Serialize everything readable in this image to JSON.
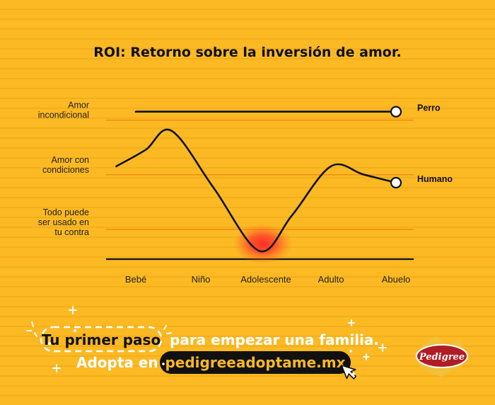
{
  "title": "ROI: Retorno sobre la inversión de amor.",
  "chart_data": {
    "type": "line",
    "title": "ROI: Retorno sobre la inversión de amor.",
    "x_categories": [
      "Bebé",
      "Niño",
      "Adolescente",
      "Adulto",
      "Abuelo"
    ],
    "y_levels": [
      {
        "lines": [
          "Amor",
          "incondicional"
        ],
        "value": 2
      },
      {
        "lines": [
          "Amor con",
          "condiciones"
        ],
        "value": 1
      },
      {
        "lines": [
          "Todo puede",
          "ser usado en",
          "tu contra"
        ],
        "value": 0
      }
    ],
    "ylim": [
      -0.7,
      2.1
    ],
    "grid": true,
    "series": [
      {
        "name": "Perro",
        "color": "#111111",
        "points": [
          [
            0,
            2
          ],
          [
            1,
            2
          ],
          [
            2,
            2
          ],
          [
            3,
            2
          ],
          [
            4,
            2
          ]
        ]
      },
      {
        "name": "Humano",
        "color": "#111111",
        "points": [
          [
            -0.3,
            1
          ],
          [
            0.15,
            1.3
          ],
          [
            0.55,
            1.65
          ],
          [
            1.2,
            0.6
          ],
          [
            1.9,
            -0.55
          ],
          [
            2.4,
            0.1
          ],
          [
            3.0,
            1
          ],
          [
            3.5,
            0.85
          ],
          [
            4,
            0.7
          ]
        ]
      }
    ],
    "highlight": {
      "x": 1.95,
      "y": -0.42,
      "color": "#ff2a2a"
    }
  },
  "footer": {
    "line1_box": "Tu primer paso",
    "line1_rest": "para empezar una familia.",
    "line2_prefix": "Adopta en",
    "url": "pedigreeadoptame.mx",
    "logo": "Pedigree"
  },
  "icons": {
    "cursor": "cursor-icon",
    "sparkles": "sparkle-icon"
  }
}
